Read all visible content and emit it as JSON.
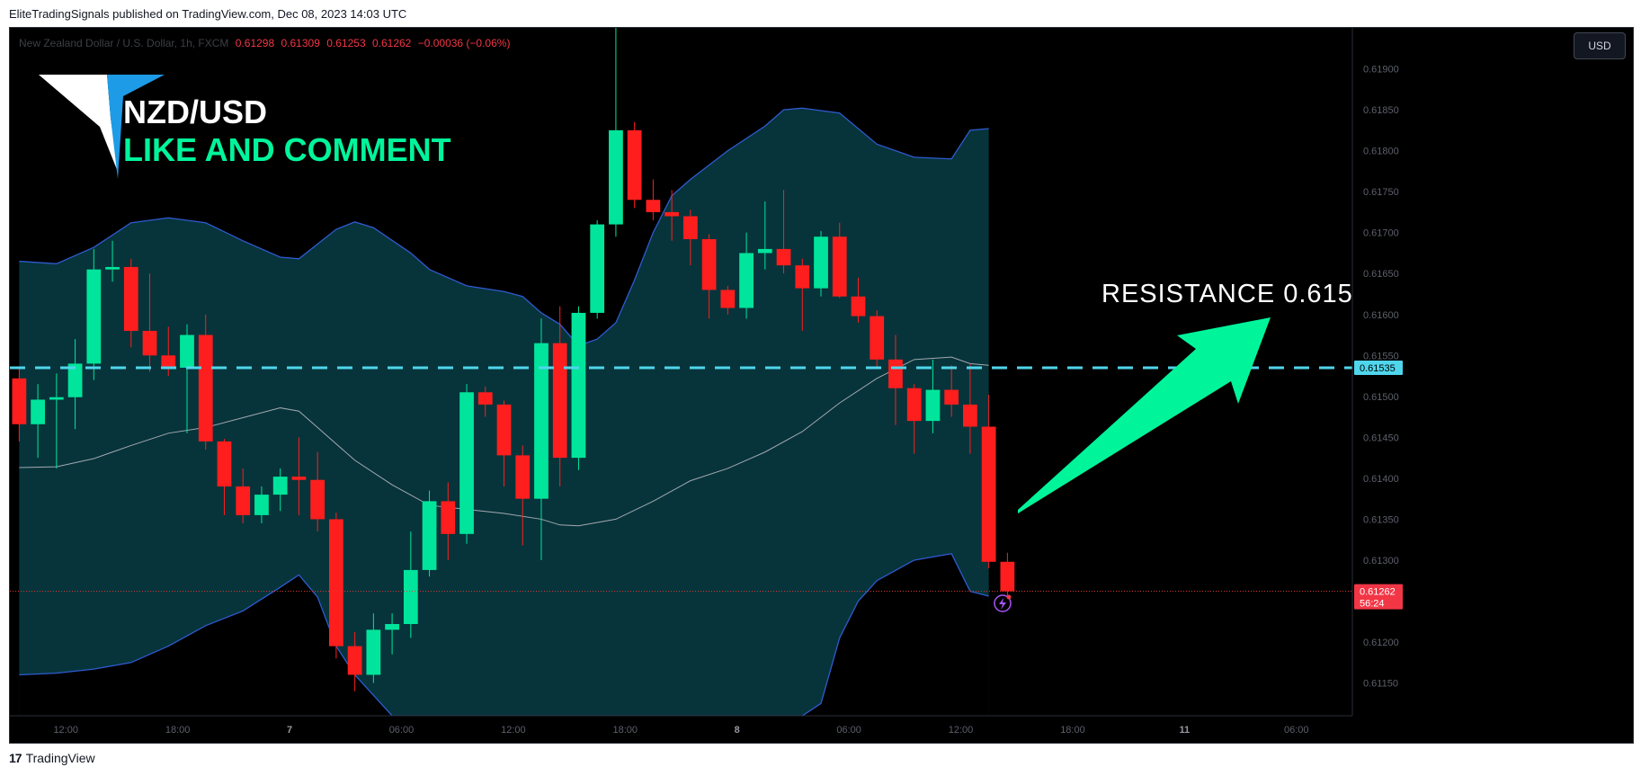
{
  "header": {
    "publisher": "EliteTradingSignals",
    "published_text": "published on TradingView.com, Dec 08, 2023 14:03 UTC"
  },
  "footer": {
    "brand": "TradingView"
  },
  "legend": {
    "symbol_desc": "New Zealand Dollar / U.S. Dollar, 1h, FXCM",
    "open": "0.61298",
    "high": "0.61309",
    "low": "0.61253",
    "close": "0.61262",
    "change": "−0.00036 (−0.06%)"
  },
  "currency_button": "USD",
  "overlay": {
    "title": "NZD/USD",
    "subtitle": "LIKE AND COMMENT",
    "resistance_label": "RESISTANCE  0.615"
  },
  "colors": {
    "up": "#00e59b",
    "down": "#ff1e1e",
    "band_fill": "#06343a",
    "band_line": "#2f5bd1",
    "basis_line": "#a5a8b1",
    "resistance": "#4fd6ec",
    "arrow": "#00f59b",
    "title_white": "#ffffff",
    "subtitle_green": "#00f59b"
  },
  "chart_data": {
    "type": "candlestick",
    "interval": "1h",
    "y_axis_ticks": [
      "0.61900",
      "0.61850",
      "0.61800",
      "0.61750",
      "0.61700",
      "0.61650",
      "0.61600",
      "0.61550",
      "0.61500",
      "0.61450",
      "0.61400",
      "0.61350",
      "0.61300",
      "0.61250",
      "0.61200",
      "0.61150"
    ],
    "ylim": [
      0.6111,
      0.6195
    ],
    "x_axis_ticks": [
      {
        "label": "12:00",
        "bar": 2.5
      },
      {
        "label": "18:00",
        "bar": 8.5
      },
      {
        "label": "7",
        "bar": 14.5
      },
      {
        "label": "06:00",
        "bar": 20.5
      },
      {
        "label": "12:00",
        "bar": 26.5
      },
      {
        "label": "18:00",
        "bar": 32.5
      },
      {
        "label": "8",
        "bar": 38.5
      },
      {
        "label": "06:00",
        "bar": 44.5
      },
      {
        "label": "12:00",
        "bar": 50.5
      },
      {
        "label": "18:00",
        "bar": 56.5
      },
      {
        "label": "11",
        "bar": 62.5
      },
      {
        "label": "06:00",
        "bar": 68.5
      }
    ],
    "bar_count_visible": 72,
    "candles": [
      {
        "o": 0.61522,
        "h": 0.61535,
        "l": 0.61445,
        "c": 0.61466
      },
      {
        "o": 0.61466,
        "h": 0.61515,
        "l": 0.61425,
        "c": 0.61496
      },
      {
        "o": 0.61496,
        "h": 0.61528,
        "l": 0.61412,
        "c": 0.61499
      },
      {
        "o": 0.61499,
        "h": 0.6157,
        "l": 0.6146,
        "c": 0.6154
      },
      {
        "o": 0.6154,
        "h": 0.6168,
        "l": 0.6152,
        "c": 0.61655
      },
      {
        "o": 0.61655,
        "h": 0.6169,
        "l": 0.6164,
        "c": 0.61658
      },
      {
        "o": 0.61658,
        "h": 0.61668,
        "l": 0.6156,
        "c": 0.6158
      },
      {
        "o": 0.6158,
        "h": 0.6165,
        "l": 0.6153,
        "c": 0.6155
      },
      {
        "o": 0.6155,
        "h": 0.61585,
        "l": 0.61525,
        "c": 0.61535
      },
      {
        "o": 0.61535,
        "h": 0.61588,
        "l": 0.61455,
        "c": 0.61575
      },
      {
        "o": 0.61575,
        "h": 0.616,
        "l": 0.61435,
        "c": 0.61445
      },
      {
        "o": 0.61445,
        "h": 0.61448,
        "l": 0.61355,
        "c": 0.6139
      },
      {
        "o": 0.6139,
        "h": 0.61412,
        "l": 0.61345,
        "c": 0.61355
      },
      {
        "o": 0.61355,
        "h": 0.6139,
        "l": 0.61345,
        "c": 0.6138
      },
      {
        "o": 0.6138,
        "h": 0.61412,
        "l": 0.6136,
        "c": 0.61402
      },
      {
        "o": 0.61402,
        "h": 0.6145,
        "l": 0.61355,
        "c": 0.61398
      },
      {
        "o": 0.61398,
        "h": 0.61432,
        "l": 0.61335,
        "c": 0.6135
      },
      {
        "o": 0.6135,
        "h": 0.61358,
        "l": 0.6118,
        "c": 0.61195
      },
      {
        "o": 0.61195,
        "h": 0.61212,
        "l": 0.6114,
        "c": 0.6116
      },
      {
        "o": 0.6116,
        "h": 0.61235,
        "l": 0.6115,
        "c": 0.61215
      },
      {
        "o": 0.61215,
        "h": 0.61235,
        "l": 0.61185,
        "c": 0.61222
      },
      {
        "o": 0.61222,
        "h": 0.61335,
        "l": 0.61205,
        "c": 0.61288
      },
      {
        "o": 0.61288,
        "h": 0.61385,
        "l": 0.6128,
        "c": 0.61372
      },
      {
        "o": 0.61372,
        "h": 0.61395,
        "l": 0.613,
        "c": 0.61332
      },
      {
        "o": 0.61332,
        "h": 0.61515,
        "l": 0.6132,
        "c": 0.61505
      },
      {
        "o": 0.61505,
        "h": 0.61512,
        "l": 0.61475,
        "c": 0.6149
      },
      {
        "o": 0.6149,
        "h": 0.61495,
        "l": 0.6139,
        "c": 0.61428
      },
      {
        "o": 0.61428,
        "h": 0.6144,
        "l": 0.61318,
        "c": 0.61375
      },
      {
        "o": 0.61375,
        "h": 0.61595,
        "l": 0.613,
        "c": 0.61565
      },
      {
        "o": 0.61565,
        "h": 0.6161,
        "l": 0.6139,
        "c": 0.61425
      },
      {
        "o": 0.61425,
        "h": 0.6161,
        "l": 0.6141,
        "c": 0.61602
      },
      {
        "o": 0.61602,
        "h": 0.61715,
        "l": 0.61595,
        "c": 0.6171
      },
      {
        "o": 0.6171,
        "h": 0.61958,
        "l": 0.61695,
        "c": 0.61825
      },
      {
        "o": 0.61825,
        "h": 0.61835,
        "l": 0.6173,
        "c": 0.6174
      },
      {
        "o": 0.6174,
        "h": 0.61765,
        "l": 0.61715,
        "c": 0.61725
      },
      {
        "o": 0.61725,
        "h": 0.61752,
        "l": 0.6169,
        "c": 0.6172
      },
      {
        "o": 0.6172,
        "h": 0.61728,
        "l": 0.6166,
        "c": 0.61692
      },
      {
        "o": 0.61692,
        "h": 0.61698,
        "l": 0.61595,
        "c": 0.6163
      },
      {
        "o": 0.6163,
        "h": 0.61635,
        "l": 0.616,
        "c": 0.61608
      },
      {
        "o": 0.61608,
        "h": 0.617,
        "l": 0.61595,
        "c": 0.61675
      },
      {
        "o": 0.61675,
        "h": 0.61738,
        "l": 0.61655,
        "c": 0.6168
      },
      {
        "o": 0.6168,
        "h": 0.61752,
        "l": 0.6165,
        "c": 0.6166
      },
      {
        "o": 0.6166,
        "h": 0.61668,
        "l": 0.6158,
        "c": 0.61632
      },
      {
        "o": 0.61632,
        "h": 0.61702,
        "l": 0.61622,
        "c": 0.61695
      },
      {
        "o": 0.61695,
        "h": 0.61712,
        "l": 0.6162,
        "c": 0.61622
      },
      {
        "o": 0.61622,
        "h": 0.61645,
        "l": 0.6159,
        "c": 0.61598
      },
      {
        "o": 0.61598,
        "h": 0.61605,
        "l": 0.61535,
        "c": 0.61545
      },
      {
        "o": 0.61545,
        "h": 0.61575,
        "l": 0.61465,
        "c": 0.6151
      },
      {
        "o": 0.6151,
        "h": 0.61515,
        "l": 0.6143,
        "c": 0.6147
      },
      {
        "o": 0.6147,
        "h": 0.61545,
        "l": 0.61455,
        "c": 0.61508
      },
      {
        "o": 0.61508,
        "h": 0.61538,
        "l": 0.61475,
        "c": 0.6149
      },
      {
        "o": 0.6149,
        "h": 0.6154,
        "l": 0.6143,
        "c": 0.61463
      },
      {
        "o": 0.61463,
        "h": 0.61502,
        "l": 0.6129,
        "c": 0.61298
      },
      {
        "o": 0.61298,
        "h": 0.61309,
        "l": 0.61253,
        "c": 0.61262
      }
    ],
    "bollinger": {
      "upper": [
        [
          0,
          0.61665
        ],
        [
          2,
          0.61662
        ],
        [
          4,
          0.61682
        ],
        [
          6,
          0.61712
        ],
        [
          8,
          0.61718
        ],
        [
          10,
          0.61712
        ],
        [
          12,
          0.6169
        ],
        [
          14,
          0.6167
        ],
        [
          15,
          0.61668
        ],
        [
          17,
          0.61704
        ],
        [
          18,
          0.61713
        ],
        [
          19,
          0.61706
        ],
        [
          21,
          0.61675
        ],
        [
          22,
          0.61655
        ],
        [
          24,
          0.61635
        ],
        [
          26,
          0.61628
        ],
        [
          27,
          0.61622
        ],
        [
          28,
          0.61602
        ],
        [
          29,
          0.61588
        ],
        [
          30,
          0.61562
        ],
        [
          31,
          0.6157
        ],
        [
          32,
          0.6159
        ],
        [
          33,
          0.61642
        ],
        [
          34,
          0.617
        ],
        [
          35,
          0.61745
        ],
        [
          36,
          0.61765
        ],
        [
          38,
          0.618
        ],
        [
          40,
          0.6183
        ],
        [
          41,
          0.6185
        ],
        [
          42,
          0.61852
        ],
        [
          44,
          0.61846
        ],
        [
          46,
          0.61808
        ],
        [
          48,
          0.61792
        ],
        [
          50,
          0.6179
        ],
        [
          51,
          0.61825
        ],
        [
          52,
          0.61827
        ]
      ],
      "basis": [
        [
          0,
          0.61413
        ],
        [
          2,
          0.61414
        ],
        [
          4,
          0.61424
        ],
        [
          6,
          0.6144
        ],
        [
          8,
          0.61455
        ],
        [
          10,
          0.61462
        ],
        [
          12,
          0.61474
        ],
        [
          14,
          0.61486
        ],
        [
          15,
          0.61482
        ],
        [
          16,
          0.61462
        ],
        [
          18,
          0.61422
        ],
        [
          20,
          0.61392
        ],
        [
          22,
          0.61367
        ],
        [
          24,
          0.61362
        ],
        [
          26,
          0.61357
        ],
        [
          28,
          0.6135
        ],
        [
          29,
          0.61343
        ],
        [
          30,
          0.61342
        ],
        [
          32,
          0.6135
        ],
        [
          34,
          0.61372
        ],
        [
          36,
          0.61397
        ],
        [
          38,
          0.61412
        ],
        [
          40,
          0.61432
        ],
        [
          42,
          0.61457
        ],
        [
          44,
          0.61492
        ],
        [
          46,
          0.61522
        ],
        [
          48,
          0.61545
        ],
        [
          50,
          0.61548
        ],
        [
          51,
          0.6154
        ],
        [
          52,
          0.61538
        ]
      ],
      "lower": [
        [
          0,
          0.6116
        ],
        [
          2,
          0.61162
        ],
        [
          4,
          0.61167
        ],
        [
          6,
          0.61175
        ],
        [
          8,
          0.61195
        ],
        [
          10,
          0.6122
        ],
        [
          12,
          0.61238
        ],
        [
          14,
          0.61267
        ],
        [
          15,
          0.61282
        ],
        [
          16,
          0.61255
        ],
        [
          17,
          0.61195
        ],
        [
          18,
          0.6116
        ],
        [
          19,
          0.61135
        ],
        [
          20,
          0.6111
        ],
        [
          42,
          0.6111
        ],
        [
          43,
          0.61125
        ],
        [
          44,
          0.61205
        ],
        [
          45,
          0.6125
        ],
        [
          46,
          0.61275
        ],
        [
          48,
          0.613
        ],
        [
          50,
          0.61308
        ],
        [
          51,
          0.61262
        ],
        [
          52,
          0.61256
        ]
      ]
    },
    "resistance_level": 0.61535,
    "last_price": 0.61262,
    "price_badges": [
      {
        "value": "0.61535",
        "kind": "resistance"
      },
      {
        "value": "0.61262",
        "countdown": "56:24",
        "kind": "last"
      }
    ]
  }
}
